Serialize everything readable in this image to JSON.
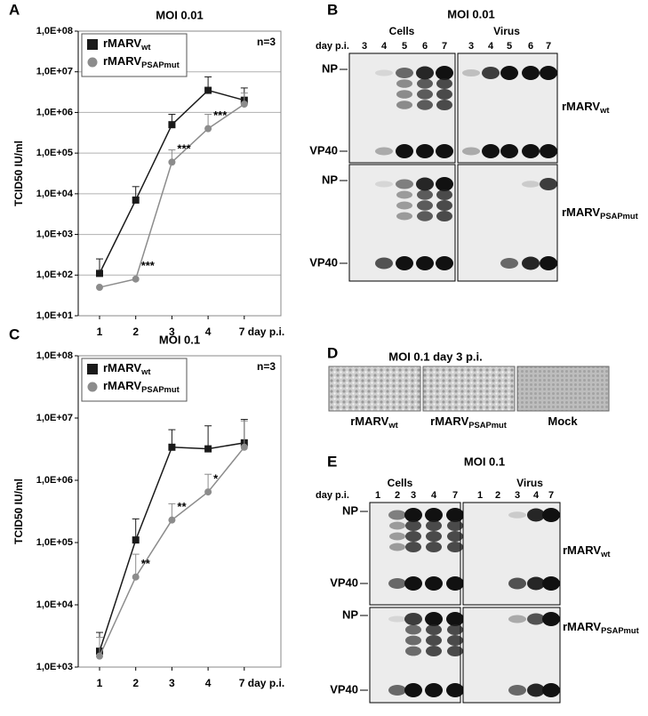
{
  "chart_data": [
    {
      "type": "line",
      "panel": "A",
      "title": "MOI 0.01",
      "annotation": "n=3",
      "y_label": "TCID50 IU/ml",
      "categories": [
        "1",
        "2",
        "3",
        "4",
        "7 day p.i."
      ],
      "log": true,
      "grid": true,
      "legend": "upper left",
      "ylim": [
        10,
        100000000
      ],
      "yticks": [
        {
          "value": 10,
          "label": "1,0E+01"
        },
        {
          "value": 100,
          "label": "1,0E+02"
        },
        {
          "value": 1000,
          "label": "1,0E+03"
        },
        {
          "value": 10000,
          "label": "1,0E+04"
        },
        {
          "value": 100000,
          "label": "1,0E+05"
        },
        {
          "value": 1000000,
          "label": "1,0E+06"
        },
        {
          "value": 10000000,
          "label": "1,0E+07"
        },
        {
          "value": 100000000,
          "label": "1,0E+08"
        }
      ],
      "series": [
        {
          "name": "rMARV",
          "subscript": "wt",
          "color": "#1a1a1a",
          "marker": "square",
          "values": [
            110,
            7000,
            500000,
            3500000,
            2000000
          ],
          "errors": [
            140,
            8000,
            400000,
            4000000,
            2000000
          ],
          "significance": [
            null,
            null,
            null,
            null,
            null
          ]
        },
        {
          "name": "rMARV",
          "subscript": "PSAPmut",
          "color": "#8c8c8c",
          "marker": "circle",
          "values": [
            50,
            80,
            60000,
            400000,
            1600000
          ],
          "errors": [
            null,
            null,
            60000,
            500000,
            1400000
          ],
          "significance": [
            null,
            "***",
            "***",
            "***",
            null
          ]
        }
      ]
    },
    {
      "type": "line",
      "panel": "C",
      "title": "MOI 0.1",
      "annotation": "n=3",
      "y_label": "TCID50 IU/ml",
      "categories": [
        "1",
        "2",
        "3",
        "4",
        "7 day p.i."
      ],
      "log": true,
      "grid": false,
      "legend": "upper left",
      "ylim": [
        1000,
        100000000
      ],
      "yticks": [
        {
          "value": 1000,
          "label": "1,0E+03"
        },
        {
          "value": 10000,
          "label": "1,0E+04"
        },
        {
          "value": 100000,
          "label": "1,0E+05"
        },
        {
          "value": 1000000,
          "label": "1,0E+06"
        },
        {
          "value": 10000000,
          "label": "1,0E+07"
        },
        {
          "value": 100000000,
          "label": "1,0E+08"
        }
      ],
      "series": [
        {
          "name": "rMARV",
          "subscript": "wt",
          "color": "#1a1a1a",
          "marker": "square",
          "values": [
            1800,
            110000,
            3400000,
            3200000,
            4000000
          ],
          "errors": [
            1800,
            130000,
            3100000,
            4300000,
            5500000
          ],
          "significance": [
            null,
            null,
            null,
            null,
            null
          ]
        },
        {
          "name": "rMARV",
          "subscript": "PSAPmut",
          "color": "#8c8c8c",
          "marker": "circle",
          "values": [
            1500,
            28000,
            230000,
            650000,
            3400000
          ],
          "errors": [
            1500,
            37000,
            190000,
            600000,
            5600000
          ],
          "significance": [
            null,
            "**",
            "**",
            "*",
            null
          ]
        }
      ]
    }
  ],
  "blots": [
    {
      "panel": "B",
      "title": "MOI 0.01",
      "groups": [
        "Cells",
        "Virus"
      ],
      "lane_header": "day p.i.",
      "lanes": [
        "3",
        "4",
        "5",
        "6",
        "7"
      ],
      "bands": [
        "NP",
        "VP40"
      ],
      "rows": [
        {
          "name": "rMARV",
          "subscript": "wt"
        },
        {
          "name": "rMARV",
          "subscript": "PSAPmut"
        }
      ]
    },
    {
      "panel": "E",
      "title": "MOI 0.1",
      "groups": [
        "Cells",
        "Virus"
      ],
      "lane_header": "day p.i.",
      "lanes": [
        "1",
        "2",
        "3",
        "4",
        "7"
      ],
      "bands": [
        "NP",
        "VP40"
      ],
      "rows": [
        {
          "name": "rMARV",
          "subscript": "wt"
        },
        {
          "name": "rMARV",
          "subscript": "PSAPmut"
        }
      ]
    }
  ],
  "micrographs": {
    "panel": "D",
    "title": "MOI 0.1 day 3 p.i.",
    "labels": [
      {
        "name": "rMARV",
        "subscript": "wt"
      },
      {
        "name": "rMARV",
        "subscript": "PSAPmut"
      },
      {
        "name": "Mock"
      }
    ]
  }
}
